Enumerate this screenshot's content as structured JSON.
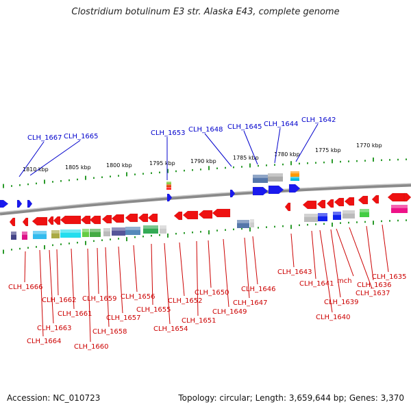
{
  "title": "Clostridium botulinum E3 str. Alaska E43, complete genome",
  "footer": {
    "accession": "Accession: NC_010723",
    "summary": "Topology: circular; Length: 3,659,644 bp; Genes: 3,370"
  },
  "scale_labels": [
    "1810 kbp",
    "1805 kbp",
    "1800 kbp",
    "1795 kbp",
    "1790 kbp",
    "1785 kbp",
    "1780 kbp",
    "1775 kbp",
    "1770 kbp"
  ],
  "top_labels": [
    "CLH_1667",
    "CLH_1665",
    "CLH_1653",
    "CLH_1648",
    "CLH_1645",
    "CLH_1644",
    "CLH_1642"
  ],
  "bottom_labels": [
    "CLH_1666",
    "CLH_1664",
    "CLH_1663",
    "CLH_1662",
    "CLH_1661",
    "CLH_1660",
    "CLH_1659",
    "CLH_1658",
    "CLH_1657",
    "CLH_1656",
    "CLH_1655",
    "CLH_1654",
    "CLH_1652",
    "CLH_1651",
    "CLH_1650",
    "CLH_1649",
    "CLH_1647",
    "CLH_1646",
    "CLH_1643",
    "CLH_1641",
    "CLH_1640",
    "CLH_1639",
    "mch",
    "CLH_1637",
    "CLH_1636",
    "CLH_1635"
  ],
  "colors": {
    "backbone": "#888888",
    "forward_gene": "#0000ee",
    "reverse_gene": "#ee0000",
    "tick": "#229922",
    "top_label": "#0000cc",
    "bottom_label": "#cc0000"
  }
}
